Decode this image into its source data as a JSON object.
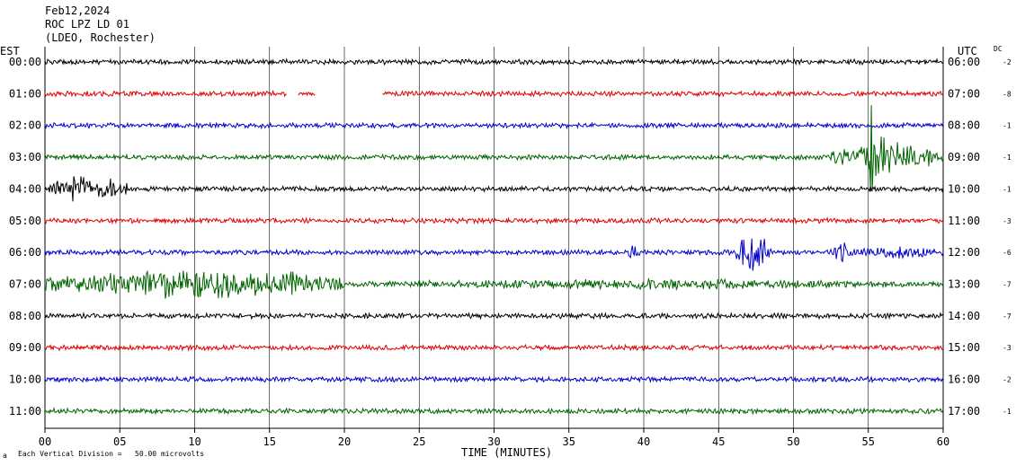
{
  "header": {
    "date": "Feb12,2024",
    "station": "ROC LPZ LD 01",
    "network": "(LDEO, Rochester)"
  },
  "labels": {
    "left_zone": "EST",
    "right_zone": "UTC",
    "dc": "DC",
    "x_axis": "TIME (MINUTES)",
    "scale_note": "Each Vertical Division =   50.00 microvolts",
    "logo_mark": "a"
  },
  "chart_data": {
    "type": "line",
    "x_ticks": [
      "00",
      "05",
      "10",
      "15",
      "20",
      "25",
      "30",
      "35",
      "40",
      "45",
      "50",
      "55",
      "60"
    ],
    "xlim": [
      0,
      60
    ],
    "grid": true,
    "rows": [
      {
        "est": "00:00",
        "utc": "06:00",
        "dc": "-2",
        "color": "#000000",
        "gaps": []
      },
      {
        "est": "01:00",
        "utc": "07:00",
        "dc": "-8",
        "color": "#e00000",
        "gaps": [
          [
            16.2,
            16.9
          ],
          [
            18.1,
            22.5
          ]
        ]
      },
      {
        "est": "02:00",
        "utc": "08:00",
        "dc": "-1",
        "color": "#0000cc",
        "gaps": []
      },
      {
        "est": "03:00",
        "utc": "09:00",
        "dc": "-1",
        "color": "#006400",
        "gaps": []
      },
      {
        "est": "04:00",
        "utc": "10:00",
        "dc": "-1",
        "color": "#000000",
        "gaps": []
      },
      {
        "est": "05:00",
        "utc": "11:00",
        "dc": "-3",
        "color": "#e00000",
        "gaps": []
      },
      {
        "est": "06:00",
        "utc": "12:00",
        "dc": "-6",
        "color": "#0000cc",
        "gaps": []
      },
      {
        "est": "07:00",
        "utc": "13:00",
        "dc": "-7",
        "color": "#006400",
        "gaps": []
      },
      {
        "est": "08:00",
        "utc": "14:00",
        "dc": "-7",
        "color": "#000000",
        "gaps": []
      },
      {
        "est": "09:00",
        "utc": "15:00",
        "dc": "-3",
        "color": "#e00000",
        "gaps": []
      },
      {
        "est": "10:00",
        "utc": "16:00",
        "dc": "-2",
        "color": "#0000cc",
        "gaps": []
      },
      {
        "est": "11:00",
        "utc": "17:00",
        "dc": "-1",
        "color": "#006400",
        "gaps": []
      }
    ]
  }
}
